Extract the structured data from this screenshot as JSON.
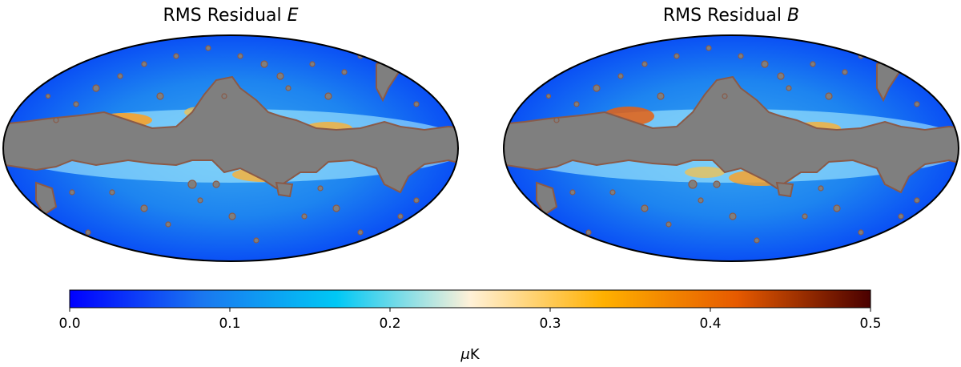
{
  "chart_data": {
    "type": "heatmap",
    "projection": "mollweide",
    "panels": [
      {
        "title_text": "RMS Residual ",
        "title_symbol": "E"
      },
      {
        "title_text": "RMS Residual ",
        "title_symbol": "B"
      }
    ],
    "colorbar": {
      "range": [
        0.0,
        0.5
      ],
      "ticks": [
        0.0,
        0.1,
        0.2,
        0.3,
        0.4,
        0.5
      ],
      "tick_labels": [
        "0.0",
        "0.1",
        "0.2",
        "0.3",
        "0.4",
        "0.5"
      ],
      "unit_symbol": "μ",
      "unit": "K",
      "orientation": "horizontal",
      "colors": [
        "#0000ff",
        "#1a78f0",
        "#00c8f5",
        "#fff1d8",
        "#ffb000",
        "#e65a00",
        "#4a0000"
      ]
    },
    "mask_color": "#7f7f7f",
    "mask_edge_color": "#8a5a48",
    "legend": "none",
    "grid": false
  }
}
